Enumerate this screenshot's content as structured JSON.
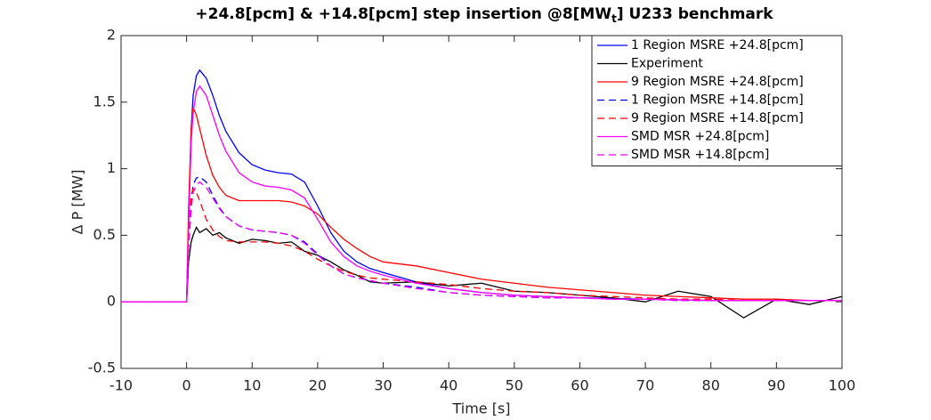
{
  "chart_data": {
    "type": "line",
    "title": [
      "+24.8[pcm] & +14.8[pcm] step insertion @8[MW",
      "t",
      "] U233 benchmark"
    ],
    "x_label": "Time [s]",
    "y_label": "Δ P [MW]",
    "xlim": [
      -10,
      100
    ],
    "xticks": [
      -10,
      0,
      10,
      20,
      30,
      40,
      50,
      60,
      70,
      80,
      90,
      100
    ],
    "ylim": [
      -0.5,
      2
    ],
    "yticks": [
      -0.5,
      0,
      0.5,
      1,
      1.5,
      2
    ],
    "grid": false,
    "legend": "top-right",
    "x": [
      -10,
      0,
      0.3,
      0.7,
      1,
      1.5,
      2,
      3,
      4,
      5,
      6,
      8,
      10,
      12,
      14,
      16,
      18,
      20,
      22,
      24,
      26,
      28,
      30,
      35,
      40,
      45,
      50,
      55,
      60,
      65,
      70,
      75,
      80,
      85,
      90,
      95,
      100
    ],
    "series": [
      {
        "name": "1 Region MSRE +24.8[pcm]",
        "color": "#0000ff",
        "style": "solid",
        "values": [
          0,
          0,
          0.6,
          1.3,
          1.55,
          1.7,
          1.74,
          1.68,
          1.55,
          1.4,
          1.28,
          1.12,
          1.03,
          0.99,
          0.97,
          0.96,
          0.9,
          0.72,
          0.52,
          0.38,
          0.3,
          0.25,
          0.22,
          0.15,
          0.1,
          0.07,
          0.05,
          0.04,
          0.03,
          0.025,
          0.02,
          0.015,
          0.01,
          0.01,
          0.01,
          0.01,
          0.01
        ]
      },
      {
        "name": "Experiment",
        "color": "#000000",
        "style": "solid",
        "values": [
          0,
          0,
          0.3,
          0.45,
          0.5,
          0.56,
          0.52,
          0.55,
          0.5,
          0.52,
          0.48,
          0.44,
          0.47,
          0.46,
          0.44,
          0.45,
          0.38,
          0.35,
          0.3,
          0.24,
          0.2,
          0.15,
          0.14,
          0.15,
          0.12,
          0.14,
          0.08,
          0.07,
          0.05,
          0.03,
          0,
          0.08,
          0.04,
          -0.12,
          0.02,
          -0.02,
          0.04
        ]
      },
      {
        "name": "9 Region MSRE +24.8[pcm]",
        "color": "#ff0000",
        "style": "solid",
        "values": [
          0,
          0,
          0.7,
          1.3,
          1.46,
          1.4,
          1.3,
          1.1,
          0.95,
          0.86,
          0.8,
          0.76,
          0.76,
          0.76,
          0.76,
          0.75,
          0.72,
          0.66,
          0.56,
          0.47,
          0.4,
          0.34,
          0.3,
          0.27,
          0.22,
          0.17,
          0.14,
          0.11,
          0.09,
          0.07,
          0.05,
          0.04,
          0.03,
          0.02,
          0.02,
          0.01,
          0.01
        ]
      },
      {
        "name": "1 Region MSRE +14.8[pcm]",
        "color": "#0000ff",
        "style": "dashed",
        "values": [
          0,
          0,
          0.4,
          0.75,
          0.88,
          0.93,
          0.94,
          0.9,
          0.8,
          0.71,
          0.64,
          0.57,
          0.54,
          0.53,
          0.52,
          0.5,
          0.45,
          0.36,
          0.27,
          0.21,
          0.18,
          0.16,
          0.14,
          0.11,
          0.07,
          0.05,
          0.04,
          0.03,
          0.03,
          0.02,
          0.02,
          0.01,
          0.01,
          0.01,
          0.01,
          0.01,
          0.01
        ]
      },
      {
        "name": "9 Region MSRE +14.8[pcm]",
        "color": "#ff0000",
        "style": "dashed",
        "values": [
          0,
          0,
          0.5,
          0.8,
          0.85,
          0.82,
          0.76,
          0.62,
          0.54,
          0.49,
          0.46,
          0.45,
          0.45,
          0.45,
          0.44,
          0.42,
          0.38,
          0.32,
          0.27,
          0.23,
          0.2,
          0.18,
          0.17,
          0.15,
          0.13,
          0.1,
          0.08,
          0.07,
          0.05,
          0.04,
          0.03,
          0.02,
          0.02,
          0.01,
          0.01,
          0.01,
          0.01
        ]
      },
      {
        "name": "SMD MSR +24.8[pcm]",
        "color": "#ff00ff",
        "style": "solid",
        "values": [
          0,
          0,
          0.55,
          1.2,
          1.42,
          1.58,
          1.62,
          1.55,
          1.4,
          1.25,
          1.13,
          0.97,
          0.9,
          0.87,
          0.86,
          0.84,
          0.78,
          0.62,
          0.45,
          0.34,
          0.27,
          0.23,
          0.2,
          0.14,
          0.1,
          0.07,
          0.05,
          0.04,
          0.03,
          0.02,
          0.02,
          0.015,
          0.01,
          0.01,
          0.01,
          0.01,
          0.01
        ]
      },
      {
        "name": "SMD MSR +14.8[pcm]",
        "color": "#ff00ff",
        "style": "dashed",
        "values": [
          0,
          0,
          0.4,
          0.7,
          0.82,
          0.88,
          0.9,
          0.86,
          0.78,
          0.7,
          0.64,
          0.57,
          0.54,
          0.53,
          0.52,
          0.5,
          0.44,
          0.35,
          0.27,
          0.21,
          0.18,
          0.16,
          0.14,
          0.1,
          0.07,
          0.05,
          0.04,
          0.03,
          0.03,
          0.02,
          0.02,
          0.01,
          0.01,
          0.01,
          0.01,
          0.01,
          0.01
        ]
      }
    ]
  }
}
